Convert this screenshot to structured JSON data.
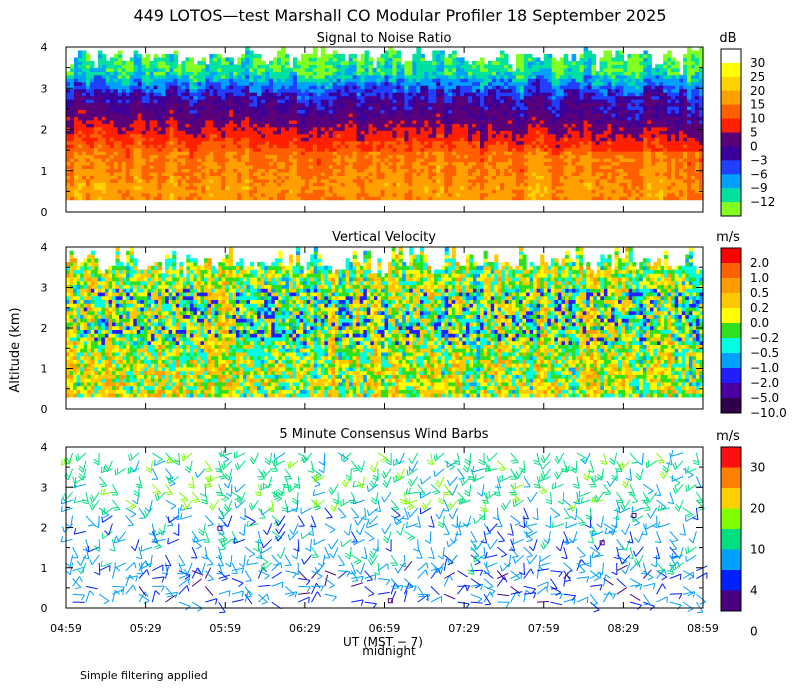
{
  "chart_data": {
    "type": "heatmap",
    "title": "449 LOTOS—test Marshall CO Modular Profiler 18 September 2025",
    "ylabel": "Altitude (km)",
    "xlabel": "UT (MST − 7)",
    "xlabel_note": "midnight",
    "footnote": "Simple filtering applied",
    "x_ticks": [
      "04:59",
      "05:29",
      "05:59",
      "06:29",
      "06:59",
      "07:29",
      "07:59",
      "08:29",
      "08:59"
    ],
    "x_range_hours_ut": [
      4.9833,
      8.9833
    ],
    "midnight_local_hour_ut": 7.0,
    "panels": [
      {
        "id": "snr",
        "title": "Signal to Noise Ratio",
        "type": "heatmap",
        "unit": "dB",
        "ylim": [
          0,
          4
        ],
        "y_ticks": [
          "0",
          "1",
          "2",
          "3",
          "4"
        ],
        "data_altitude_range_km": [
          0.3,
          4.0
        ],
        "colorbar_labels": [
          "30",
          "25",
          "20",
          "15",
          "10",
          "5",
          "0",
          "−3",
          "−6",
          "−9",
          "−12"
        ],
        "colors": [
          "#ffffff",
          "#ffff00",
          "#ffd200",
          "#ffa000",
          "#ff6000",
          "#ff2000",
          "#5a0078",
          "#3c009a",
          "#2040ff",
          "#00a0ff",
          "#00e0a0",
          "#80ff20"
        ],
        "profile_by_altitude": [
          {
            "alt_km": 0.3,
            "db": 16
          },
          {
            "alt_km": 0.6,
            "db": 17
          },
          {
            "alt_km": 1.0,
            "db": 15
          },
          {
            "alt_km": 1.4,
            "db": 14
          },
          {
            "alt_km": 1.8,
            "db": 9
          },
          {
            "alt_km": 2.2,
            "db": 4
          },
          {
            "alt_km": 2.6,
            "db": 0
          },
          {
            "alt_km": 3.0,
            "db": -5
          },
          {
            "alt_km": 3.4,
            "db": -11
          },
          {
            "alt_km": 3.8,
            "db": -12
          },
          {
            "alt_km": 4.0,
            "db": -13
          }
        ]
      },
      {
        "id": "vv",
        "title": "Vertical Velocity",
        "type": "heatmap",
        "unit": "m/s",
        "ylim": [
          0,
          4
        ],
        "y_ticks": [
          "0",
          "1",
          "2",
          "3",
          "4"
        ],
        "data_altitude_range_km": [
          0.3,
          4.0
        ],
        "colorbar_labels": [
          "2.0",
          "1.0",
          "0.5",
          "0.2",
          "0.0",
          "−0.2",
          "−0.5",
          "−1.0",
          "−2.0",
          "−5.0",
          "−10.0"
        ],
        "colors": [
          "#ff0000",
          "#ff6000",
          "#ff9c00",
          "#ffc800",
          "#ffff00",
          "#30e020",
          "#00ffe0",
          "#00a0ff",
          "#2020ff",
          "#4a00a0",
          "#300048"
        ],
        "value_bounds_m_s": [
          -10,
          -5,
          -2,
          -1,
          -0.5,
          -0.2,
          0,
          0.2,
          0.5,
          1,
          2
        ]
      },
      {
        "id": "wind",
        "title": "5 Minute Consensus Wind Barbs",
        "type": "wind-barbs",
        "unit": "m/s",
        "ylim": [
          0,
          4
        ],
        "y_ticks": [
          "0",
          "1",
          "2",
          "3",
          "4"
        ],
        "colorbar_labels": [
          "30",
          "20",
          "10",
          "4",
          "0"
        ],
        "colors": [
          "#ff1010",
          "#ff8000",
          "#ffd000",
          "#80ff00",
          "#00e080",
          "#00a0ff",
          "#0020ff",
          "#4a0080"
        ],
        "speed_bounds_m_s": [
          0,
          2,
          4,
          7,
          10,
          15,
          20,
          25,
          30
        ],
        "typical_speed_m_s": 5
      }
    ]
  }
}
